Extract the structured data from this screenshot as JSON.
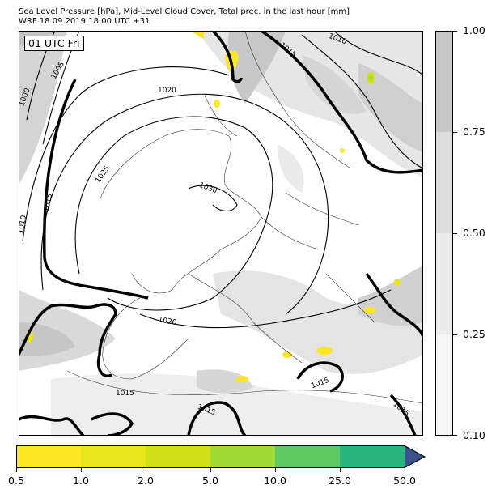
{
  "header": {
    "title_line1": "Sea Level Pressure [hPa], Mid-Level Cloud Cover, Total prec. in the last hour [mm]",
    "title_line2": "WRF 18.09.2019 18:00 UTC +31"
  },
  "map": {
    "time_label": "01 UTC Fri",
    "isobar_labels": [
      "1000",
      "1005",
      "1010",
      "1010",
      "1015",
      "1015",
      "1015",
      "1015",
      "1015",
      "1015",
      "1020",
      "1020",
      "1025",
      "1030"
    ]
  },
  "cloud_colorbar": {
    "ticks": [
      "1.00",
      "0.75",
      "0.50",
      "0.25",
      "0.10"
    ],
    "colors": [
      "#c8c8c8",
      "#dcdcdc",
      "#ececec",
      "#f6f6f6"
    ]
  },
  "precip_colorbar": {
    "ticks": [
      "0.5",
      "1.0",
      "2.0",
      "5.0",
      "10.0",
      "25.0",
      "50.0"
    ],
    "colors": [
      "#fde725",
      "#eae51a",
      "#d0e11c",
      "#a0da39",
      "#5ec962",
      "#2ab57a",
      "#3b528b",
      "#440154"
    ]
  }
}
